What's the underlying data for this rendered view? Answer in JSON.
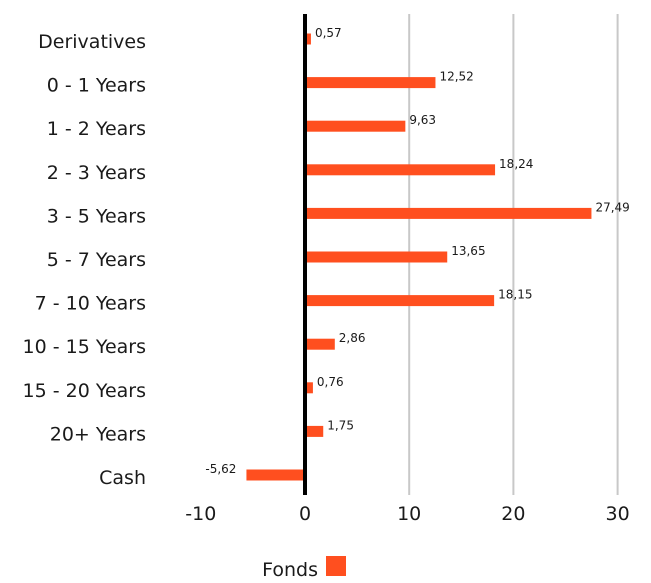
{
  "chart_data": {
    "type": "bar",
    "orientation": "horizontal",
    "categories": [
      "Derivatives",
      "0 - 1 Years",
      "1 - 2 Years",
      "2 - 3 Years",
      "3 - 5 Years",
      "5 - 7 Years",
      "7 - 10 Years",
      "10 - 15 Years",
      "15 - 20 Years",
      "20+ Years",
      "Cash"
    ],
    "series": [
      {
        "name": "Fonds",
        "color": "#ff4f1f",
        "values": [
          0.57,
          12.52,
          9.63,
          18.24,
          27.49,
          13.65,
          18.15,
          2.86,
          0.76,
          1.75,
          -5.62
        ],
        "value_labels": [
          "0,57",
          "12,52",
          "9,63",
          "18,24",
          "27,49",
          "13,65",
          "18,15",
          "2,86",
          "0,76",
          "1,75",
          "-5,62"
        ]
      }
    ],
    "xlim": [
      -10,
      30
    ],
    "x_ticks": [
      -10,
      0,
      10,
      20,
      30
    ],
    "x_tick_labels": [
      "-10",
      "0",
      "10",
      "20",
      "30"
    ],
    "grid": "vertical",
    "legend": "bottom-center"
  }
}
